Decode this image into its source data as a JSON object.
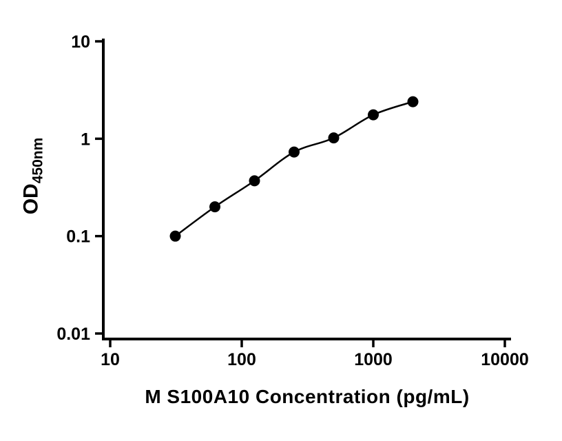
{
  "chart_data": {
    "type": "scatter",
    "subtype": "standard-curve-with-fit-line",
    "title": "",
    "xlabel": "M S100A10 Concentration (pg/mL)",
    "ylabel_main": "OD",
    "ylabel_sub": "450nm",
    "x_scale": "log",
    "y_scale": "log",
    "xlim": [
      10,
      10000
    ],
    "ylim": [
      0.01,
      10
    ],
    "x_ticks": [
      10,
      100,
      1000,
      10000
    ],
    "x_tick_labels": [
      "10",
      "100",
      "1000",
      "10000"
    ],
    "y_ticks": [
      10,
      1,
      0.1,
      0.01
    ],
    "y_tick_labels": [
      "10",
      "1",
      "0.1",
      "0.01"
    ],
    "x": [
      31.25,
      62.5,
      125,
      250,
      500,
      1000,
      2000
    ],
    "y": [
      0.1,
      0.2,
      0.37,
      0.73,
      1.02,
      1.76,
      2.4
    ],
    "grid": false,
    "legend": false,
    "marker_shape": "filled-circle",
    "marker_color": "#000000",
    "line_color": "#000000",
    "axis_color": "#000000",
    "background": "#ffffff"
  }
}
